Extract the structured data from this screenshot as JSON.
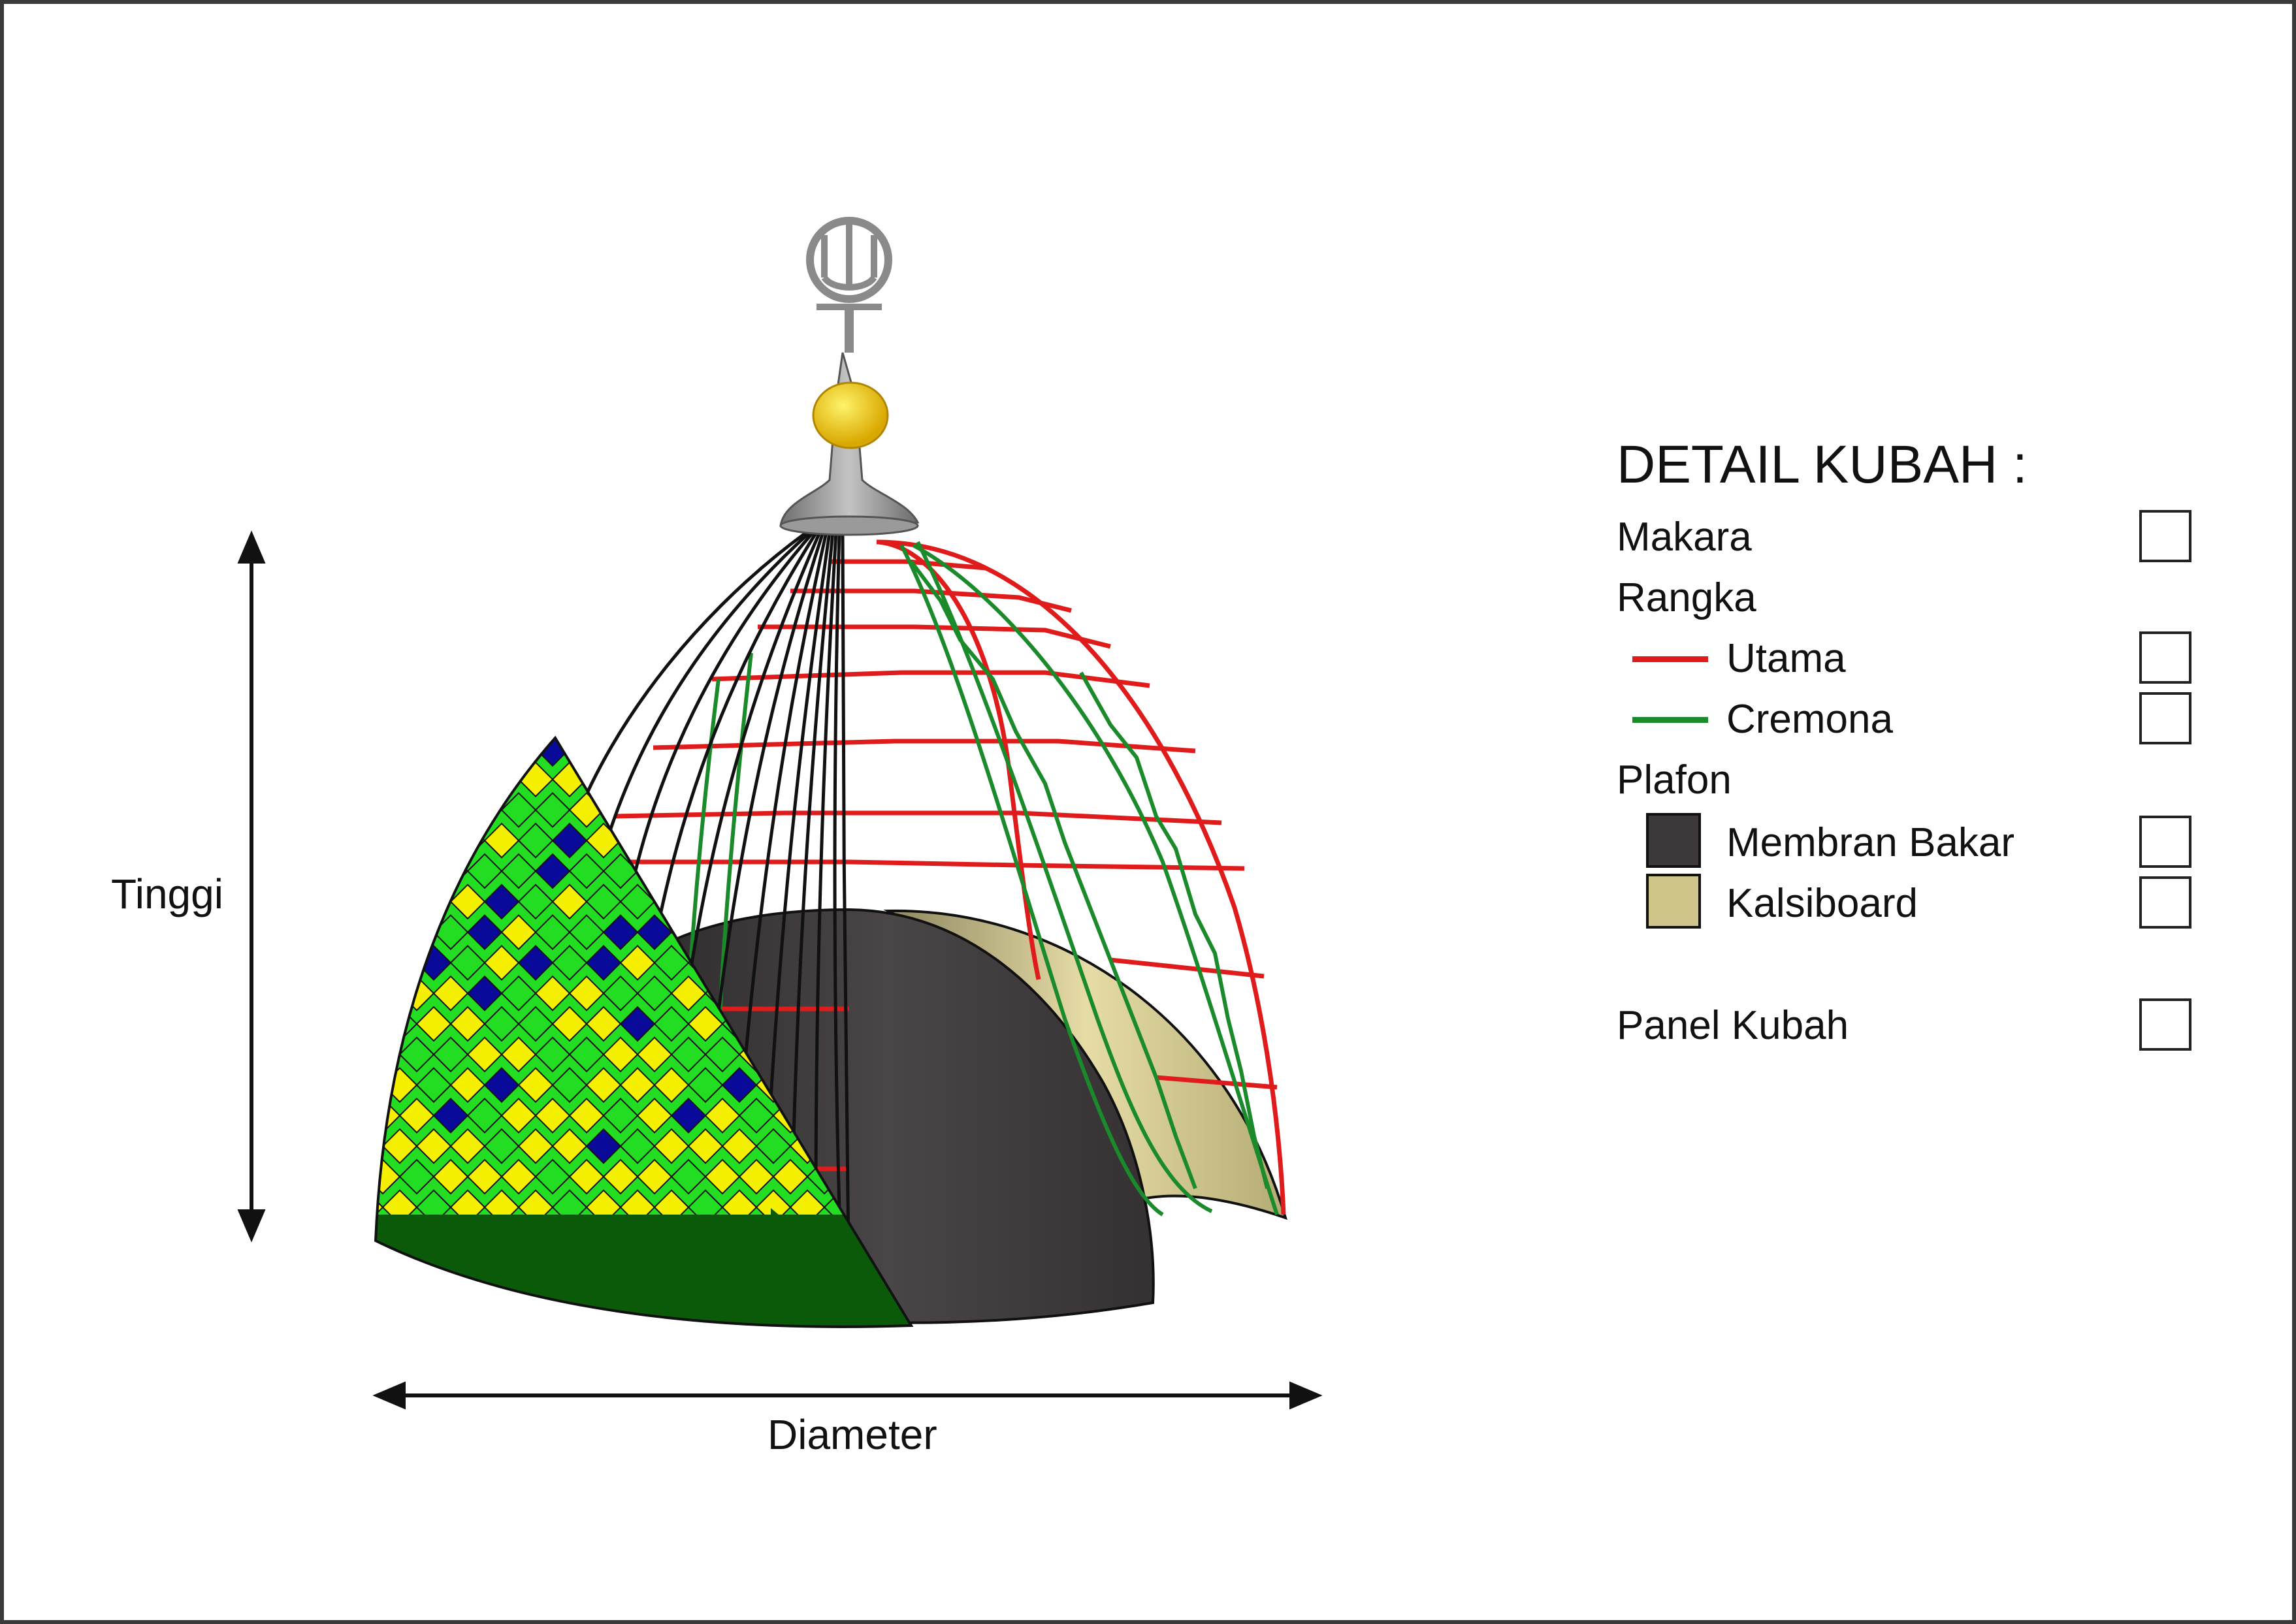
{
  "labels": {
    "height": "Tinggi",
    "diameter": "Diameter"
  },
  "legend": {
    "title": "DETAIL KUBAH :",
    "makara": "Makara",
    "rangka": "Rangka",
    "utama": "Utama",
    "cremona": "Cremona",
    "plafon": "Plafon",
    "membran_bakar": "Membran Bakar",
    "kalsiboard": "Kalsiboard",
    "panel_kubah": "Panel Kubah"
  },
  "colors": {
    "utama": "#e01b1b",
    "cremona": "#1a8a2a",
    "membran_bakar": "#3d393b",
    "kalsiboard": "#cfc48a",
    "panel_green": "#22dd22",
    "panel_yellow": "#f5f000",
    "panel_blue": "#0a0a9a",
    "panel_dark_green": "#0a5a0a",
    "makara_grey": "#8a8a8a",
    "makara_gold": "#f2cc00"
  }
}
